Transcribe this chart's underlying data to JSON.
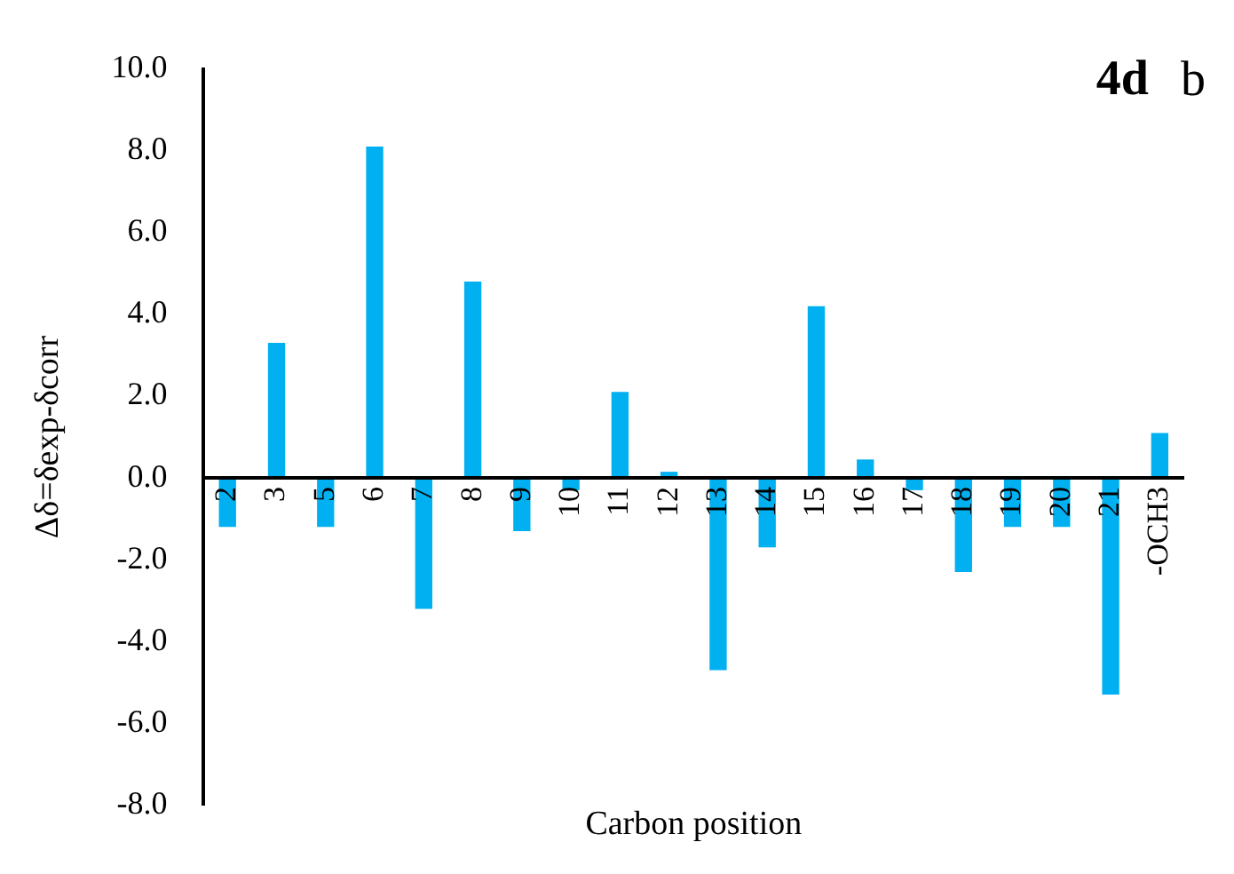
{
  "chart_data": {
    "type": "bar",
    "title": "4d",
    "annotations": [
      "b"
    ],
    "xlabel": "Carbon position",
    "ylabel": "Δδ=δexp-δcorr",
    "categories": [
      "2",
      "3",
      "5",
      "6",
      "7",
      "8",
      "9",
      "10",
      "11",
      "12",
      "13",
      "14",
      "15",
      "16",
      "17",
      "18",
      "19",
      "20",
      "21",
      "-OCH3"
    ],
    "values": [
      -1.2,
      3.3,
      -1.2,
      8.1,
      -3.2,
      4.8,
      -1.3,
      -0.3,
      2.1,
      0.15,
      -4.7,
      -1.7,
      4.2,
      0.45,
      -0.3,
      -2.3,
      -1.2,
      -1.2,
      -5.3,
      1.1
    ],
    "color": "#00b0f0",
    "ylim": [
      -8,
      10
    ],
    "yticks": [
      {
        "value": -8,
        "label": "-8.0"
      },
      {
        "value": -6,
        "label": "-6.0"
      },
      {
        "value": -4,
        "label": "-4.0"
      },
      {
        "value": -2,
        "label": "-2.0"
      },
      {
        "value": 0,
        "label": "0.0"
      },
      {
        "value": 2,
        "label": "2.0"
      },
      {
        "value": 4,
        "label": "4.0"
      },
      {
        "value": 6,
        "label": "6.0"
      },
      {
        "value": 8,
        "label": "8.0"
      },
      {
        "value": 10,
        "label": "10.0"
      }
    ],
    "grid": false,
    "legend": false
  }
}
